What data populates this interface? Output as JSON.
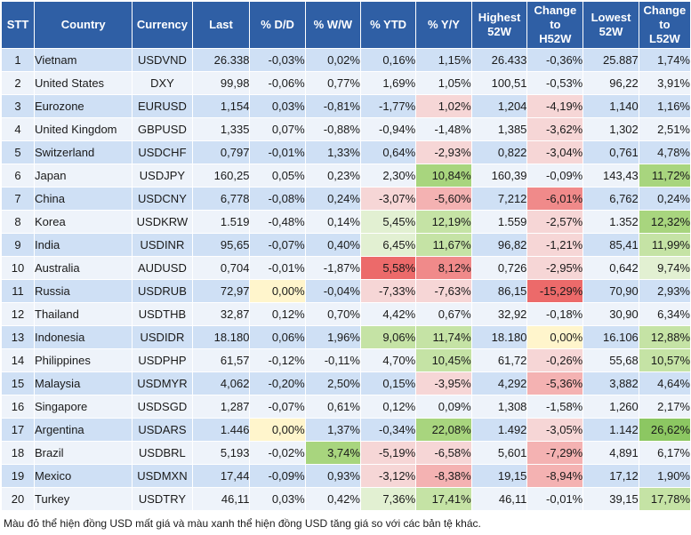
{
  "headers": [
    "STT",
    "Country",
    "Currency",
    "Last",
    "% D/D",
    "% W/W",
    "% YTD",
    "% Y/Y",
    "Highest 52W",
    "Change to H52W",
    "Lowest 52W",
    "Change to L52W"
  ],
  "rows": [
    [
      "1",
      "Vietnam",
      "USDVND",
      "26.338",
      "-0,03%",
      "0,02%",
      "0,16%",
      "1,15%",
      "26.433",
      "-0,36%",
      "25.887",
      "1,74%"
    ],
    [
      "2",
      "United States",
      "DXY",
      "99,98",
      "-0,06%",
      "0,77%",
      "1,69%",
      "1,05%",
      "100,51",
      "-0,53%",
      "96,22",
      "3,91%"
    ],
    [
      "3",
      "Eurozone",
      "EURUSD",
      "1,154",
      "0,03%",
      "-0,81%",
      "-1,77%",
      "1,02%",
      "1,204",
      "-4,19%",
      "1,140",
      "1,16%"
    ],
    [
      "4",
      "United Kingdom",
      "GBPUSD",
      "1,335",
      "0,07%",
      "-0,88%",
      "-0,94%",
      "-1,48%",
      "1,385",
      "-3,62%",
      "1,302",
      "2,51%"
    ],
    [
      "5",
      "Switzerland",
      "USDCHF",
      "0,797",
      "-0,01%",
      "1,33%",
      "0,64%",
      "-2,93%",
      "0,822",
      "-3,04%",
      "0,761",
      "4,78%"
    ],
    [
      "6",
      "Japan",
      "USDJPY",
      "160,25",
      "0,05%",
      "0,23%",
      "2,30%",
      "10,84%",
      "160,39",
      "-0,09%",
      "143,43",
      "11,72%"
    ],
    [
      "7",
      "China",
      "USDCNY",
      "6,778",
      "-0,08%",
      "0,24%",
      "-3,07%",
      "-5,60%",
      "7,212",
      "-6,01%",
      "6,762",
      "0,24%"
    ],
    [
      "8",
      "Korea",
      "USDKRW",
      "1.519",
      "-0,48%",
      "0,14%",
      "5,45%",
      "12,19%",
      "1.559",
      "-2,57%",
      "1.352",
      "12,32%"
    ],
    [
      "9",
      "India",
      "USDINR",
      "95,65",
      "-0,07%",
      "0,40%",
      "6,45%",
      "11,67%",
      "96,82",
      "-1,21%",
      "85,41",
      "11,99%"
    ],
    [
      "10",
      "Australia",
      "AUDUSD",
      "0,704",
      "-0,01%",
      "-1,87%",
      "5,58%",
      "8,12%",
      "0,726",
      "-2,95%",
      "0,642",
      "9,74%"
    ],
    [
      "11",
      "Russia",
      "USDRUB",
      "72,97",
      "0,00%",
      "-0,04%",
      "-7,33%",
      "-7,63%",
      "86,15",
      "-15,29%",
      "70,90",
      "2,93%"
    ],
    [
      "12",
      "Thailand",
      "USDTHB",
      "32,87",
      "0,12%",
      "0,70%",
      "4,42%",
      "0,67%",
      "32,92",
      "-0,18%",
      "30,90",
      "6,34%"
    ],
    [
      "13",
      "Indonesia",
      "USDIDR",
      "18.180",
      "0,06%",
      "1,96%",
      "9,06%",
      "11,74%",
      "18.180",
      "0,00%",
      "16.106",
      "12,88%"
    ],
    [
      "14",
      "Philippines",
      "USDPHP",
      "61,57",
      "-0,12%",
      "-0,11%",
      "4,70%",
      "10,45%",
      "61,72",
      "-0,26%",
      "55,68",
      "10,57%"
    ],
    [
      "15",
      "Malaysia",
      "USDMYR",
      "4,062",
      "-0,20%",
      "2,50%",
      "0,15%",
      "-3,95%",
      "4,292",
      "-5,36%",
      "3,882",
      "4,64%"
    ],
    [
      "16",
      "Singapore",
      "USDSGD",
      "1,287",
      "-0,07%",
      "0,61%",
      "0,12%",
      "0,09%",
      "1,308",
      "-1,58%",
      "1,260",
      "2,17%"
    ],
    [
      "17",
      "Argentina",
      "USDARS",
      "1.446",
      "0,00%",
      "1,37%",
      "-0,34%",
      "22,08%",
      "1.492",
      "-3,05%",
      "1.142",
      "26,62%"
    ],
    [
      "18",
      "Brazil",
      "USDBRL",
      "5,193",
      "-0,02%",
      "3,74%",
      "-5,19%",
      "-6,58%",
      "5,601",
      "-7,29%",
      "4,891",
      "6,17%"
    ],
    [
      "19",
      "Mexico",
      "USDMXN",
      "17,44",
      "-0,09%",
      "0,93%",
      "-3,12%",
      "-8,38%",
      "19,15",
      "-8,94%",
      "17,12",
      "1,90%"
    ],
    [
      "20",
      "Turkey",
      "USDTRY",
      "46,11",
      "0,03%",
      "0,42%",
      "7,36%",
      "17,41%",
      "46,11",
      "-0,01%",
      "39,15",
      "17,78%"
    ]
  ],
  "footnote": "Màu đỏ thể hiện đồng USD mất giá và màu xanh thể hiện đồng USD tăng giá so với các bản tệ khác.",
  "colors": {
    "header_bg": "#2f5fa5",
    "row_odd": "#cfe0f5",
    "row_even": "#eef3fa",
    "red_scale": [
      "#f6d6d6",
      "#f4b2b2",
      "#f08a8a",
      "#ec6a6a"
    ],
    "green_scale": [
      "#e2f0d2",
      "#c5e3a5",
      "#a8d57e",
      "#8cc762"
    ],
    "neutral": "#fff5cc"
  }
}
